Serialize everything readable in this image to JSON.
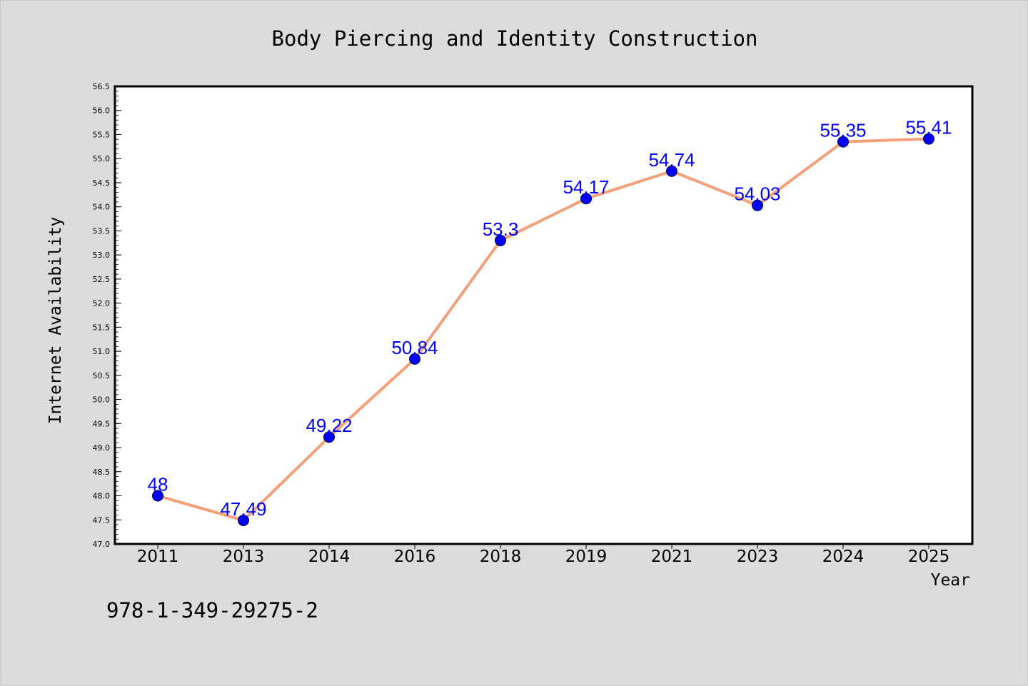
{
  "chart_data": {
    "type": "line",
    "title": "Body Piercing and Identity Construction",
    "xlabel": "Year",
    "ylabel": "Internet Availability",
    "categories": [
      "2011",
      "2013",
      "2014",
      "2016",
      "2018",
      "2019",
      "2021",
      "2023",
      "2024",
      "2025"
    ],
    "series": [
      {
        "values": [
          48,
          47.49,
          49.22,
          50.84,
          53.3,
          54.17,
          54.74,
          54.03,
          55.35,
          55.41
        ],
        "data_labels": [
          "48",
          "47.49",
          "49.22",
          "50.84",
          "53.3",
          "54.17",
          "54.74",
          "54.03",
          "55.35",
          "55.41"
        ],
        "line_color": "#f4a07a",
        "marker_color": "#0000ff"
      }
    ],
    "ylim": [
      47.0,
      56.5
    ],
    "yticks": [
      "47.0",
      "47.5",
      "48.0",
      "48.5",
      "49.0",
      "49.5",
      "50.0",
      "50.5",
      "51.0",
      "51.5",
      "52.0",
      "52.5",
      "53.0",
      "53.5",
      "54.0",
      "54.5",
      "55.0",
      "55.5",
      "56.0",
      "56.5"
    ],
    "grid": false,
    "background": "#dcdcdc",
    "plot_background": "#ffffff"
  },
  "annotation": "978-1-349-29275-2"
}
